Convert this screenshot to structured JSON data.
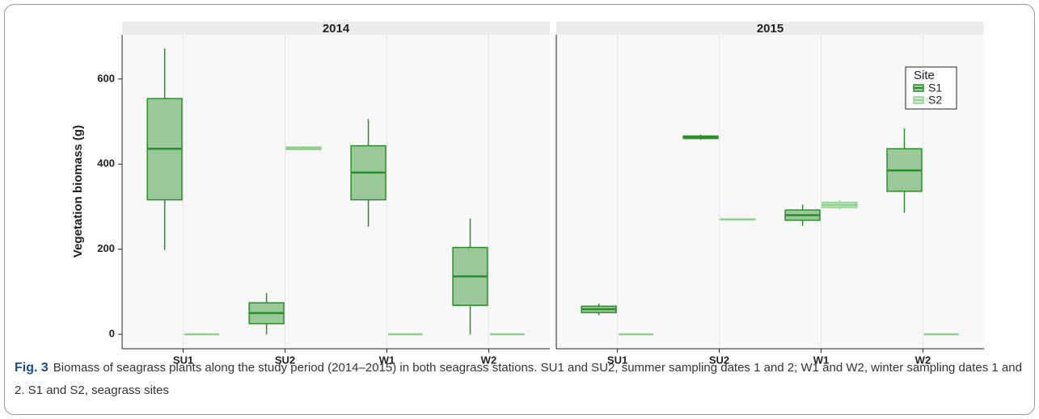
{
  "caption": {
    "label": "Fig. 3",
    "text": "Biomass of seagrass plants along the study period (2014–2015) in both seagrass stations. SU1 and SU2, summer sampling dates 1 and 2; W1 and W2, winter sampling dates 1 and 2. S1 and S2, seagrass sites"
  },
  "chart_data": [
    {
      "type": "box",
      "title": "2014",
      "ylabel": "Vegetation biomass (g)",
      "categories": [
        "SU1",
        "SU2",
        "W1",
        "W2"
      ],
      "ylim": [
        -34,
        704
      ],
      "yticks": [
        0,
        200,
        400,
        600
      ],
      "grid": "x",
      "series": [
        {
          "name": "S1",
          "color": "#2a8f2a",
          "values": [
            {
              "min": 198,
              "q1": 316,
              "median": 436,
              "q3": 554,
              "max": 672
            },
            {
              "min": 0,
              "q1": 25,
              "median": 50,
              "q3": 74,
              "max": 97
            },
            {
              "min": 253,
              "q1": 316,
              "median": 380,
              "q3": 443,
              "max": 506
            },
            {
              "min": 0,
              "q1": 68,
              "median": 136,
              "q3": 204,
              "max": 272
            }
          ]
        },
        {
          "name": "S2",
          "color": "#8fd08f",
          "values": [
            {
              "min": 0,
              "q1": 0,
              "median": 0,
              "q3": 0,
              "max": 0
            },
            {
              "min": 433,
              "q1": 434,
              "median": 437,
              "q3": 440,
              "max": 442
            },
            {
              "min": 0,
              "q1": 0,
              "median": 0,
              "q3": 0,
              "max": 0
            },
            {
              "min": 0,
              "q1": 0,
              "median": 0,
              "q3": 0,
              "max": 0
            }
          ]
        }
      ]
    },
    {
      "type": "box",
      "title": "2015",
      "categories": [
        "SU1",
        "SU2",
        "W1",
        "W2"
      ],
      "ylim": [
        -34,
        704
      ],
      "grid": "x",
      "legend": "upper right",
      "legend_title": "Site",
      "series": [
        {
          "name": "S1",
          "color": "#2a8f2a",
          "values": [
            {
              "min": 45,
              "q1": 51,
              "median": 59,
              "q3": 66,
              "max": 72
            },
            {
              "min": 457,
              "q1": 460,
              "median": 463,
              "q3": 466,
              "max": 469
            },
            {
              "min": 255,
              "q1": 268,
              "median": 280,
              "q3": 292,
              "max": 305
            },
            {
              "min": 286,
              "q1": 336,
              "median": 385,
              "q3": 436,
              "max": 484
            }
          ]
        },
        {
          "name": "S2",
          "color": "#8fd08f",
          "values": [
            {
              "min": 0,
              "q1": 0,
              "median": 0,
              "q3": 0,
              "max": 0
            },
            {
              "min": 268,
              "q1": 269,
              "median": 270,
              "q3": 271,
              "max": 272
            },
            {
              "min": 293,
              "q1": 298,
              "median": 304,
              "q3": 310,
              "max": 315
            },
            {
              "min": 0,
              "q1": 0,
              "median": 0,
              "q3": 0,
              "max": 0
            }
          ]
        }
      ]
    }
  ]
}
